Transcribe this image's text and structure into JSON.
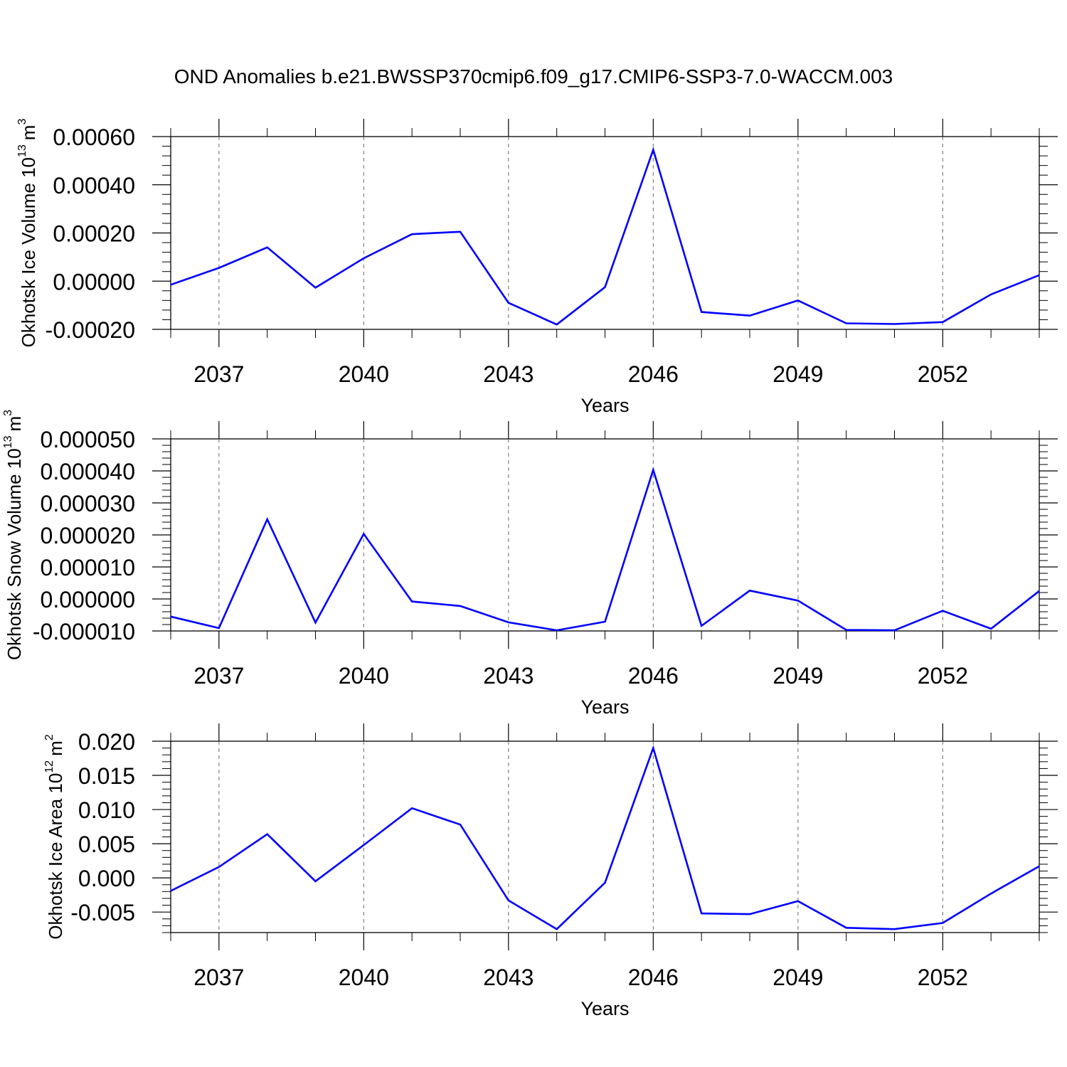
{
  "title": "OND Anomalies b.e21.BWSSP370cmip6.f09_g17.CMIP6-SSP3-7.0-WACCM.003",
  "line_color": "#0000ff",
  "chart_data": [
    {
      "type": "line",
      "xlabel": "Years",
      "ylabel_main": "Okhotsk Ice Volume 10",
      "ylabel_exp": "13",
      "ylabel_unit": "m",
      "ylabel_unit_exp": "3",
      "xlim": [
        2036,
        2054
      ],
      "ylim": [
        -0.0002,
        0.0006
      ],
      "yticks": [
        -0.0002,
        0.0,
        0.0002,
        0.0004,
        0.0006
      ],
      "ytick_labels": [
        "-0.00020",
        "0.00000",
        "0.00020",
        "0.00040",
        "0.00060"
      ],
      "xticks": [
        2037,
        2040,
        2043,
        2046,
        2049,
        2052
      ],
      "xtick_labels": [
        "2037",
        "2040",
        "2043",
        "2046",
        "2049",
        "2052"
      ],
      "grid_x": true,
      "x": [
        2036,
        2037,
        2038,
        2039,
        2040,
        2041,
        2042,
        2043,
        2044,
        2045,
        2046,
        2047,
        2048,
        2049,
        2050,
        2051,
        2052,
        2053,
        2054
      ],
      "values": [
        -1.5e-05,
        5.5e-05,
        0.00014,
        -2.7e-05,
        9.5e-05,
        0.000195,
        0.000205,
        -9e-05,
        -0.00018,
        -2.5e-05,
        0.000545,
        -0.000128,
        -0.000143,
        -8e-05,
        -0.000175,
        -0.000178,
        -0.00017,
        -5.5e-05,
        2.5e-05
      ]
    },
    {
      "type": "line",
      "xlabel": "Years",
      "ylabel_main": "Okhotsk Snow Volume 10",
      "ylabel_exp": "13",
      "ylabel_unit": "m",
      "ylabel_unit_exp": "3",
      "xlim": [
        2036,
        2054
      ],
      "ylim": [
        -1e-05,
        5e-05
      ],
      "yticks": [
        -1e-05,
        0.0,
        1e-05,
        2e-05,
        3e-05,
        4e-05,
        5e-05
      ],
      "ytick_labels": [
        "-0.000010",
        "0.000000",
        "0.000010",
        "0.000020",
        "0.000030",
        "0.000040",
        "0.000050"
      ],
      "xticks": [
        2037,
        2040,
        2043,
        2046,
        2049,
        2052
      ],
      "xtick_labels": [
        "2037",
        "2040",
        "2043",
        "2046",
        "2049",
        "2052"
      ],
      "grid_x": true,
      "x": [
        2036,
        2037,
        2038,
        2039,
        2040,
        2041,
        2042,
        2043,
        2044,
        2045,
        2046,
        2047,
        2048,
        2049,
        2050,
        2051,
        2052,
        2053,
        2054
      ],
      "values": [
        -5.5e-06,
        -9.1e-06,
        2.49e-05,
        -7.4e-06,
        2.03e-05,
        -8e-07,
        -2.2e-06,
        -7.3e-06,
        -9.8e-06,
        -7.1e-06,
        4.03e-05,
        -8.4e-06,
        2.6e-06,
        -5e-07,
        -9.7e-06,
        -9.8e-06,
        -3.7e-06,
        -9.3e-06,
        2.5e-06
      ]
    },
    {
      "type": "line",
      "xlabel": "Years",
      "ylabel_main": "Okhotsk Ice Area 10",
      "ylabel_exp": "12",
      "ylabel_unit": "m",
      "ylabel_unit_exp": "2",
      "xlim": [
        2036,
        2054
      ],
      "ylim": [
        -0.008,
        0.02
      ],
      "yticks": [
        -0.005,
        0.0,
        0.005,
        0.01,
        0.015,
        0.02
      ],
      "ytick_labels": [
        "-0.005",
        "0.000",
        "0.005",
        "0.010",
        "0.015",
        "0.020"
      ],
      "xticks": [
        2037,
        2040,
        2043,
        2046,
        2049,
        2052
      ],
      "xtick_labels": [
        "2037",
        "2040",
        "2043",
        "2046",
        "2049",
        "2052"
      ],
      "grid_x": true,
      "x": [
        2036,
        2037,
        2038,
        2039,
        2040,
        2041,
        2042,
        2043,
        2044,
        2045,
        2046,
        2047,
        2048,
        2049,
        2050,
        2051,
        2052,
        2053,
        2054
      ],
      "values": [
        -0.0019,
        0.0016,
        0.0064,
        -0.0005,
        0.0048,
        0.0102,
        0.0078,
        -0.0033,
        -0.0075,
        -0.0007,
        0.019,
        -0.0052,
        -0.0053,
        -0.0034,
        -0.0073,
        -0.0075,
        -0.0066,
        -0.0023,
        0.0017
      ]
    }
  ]
}
